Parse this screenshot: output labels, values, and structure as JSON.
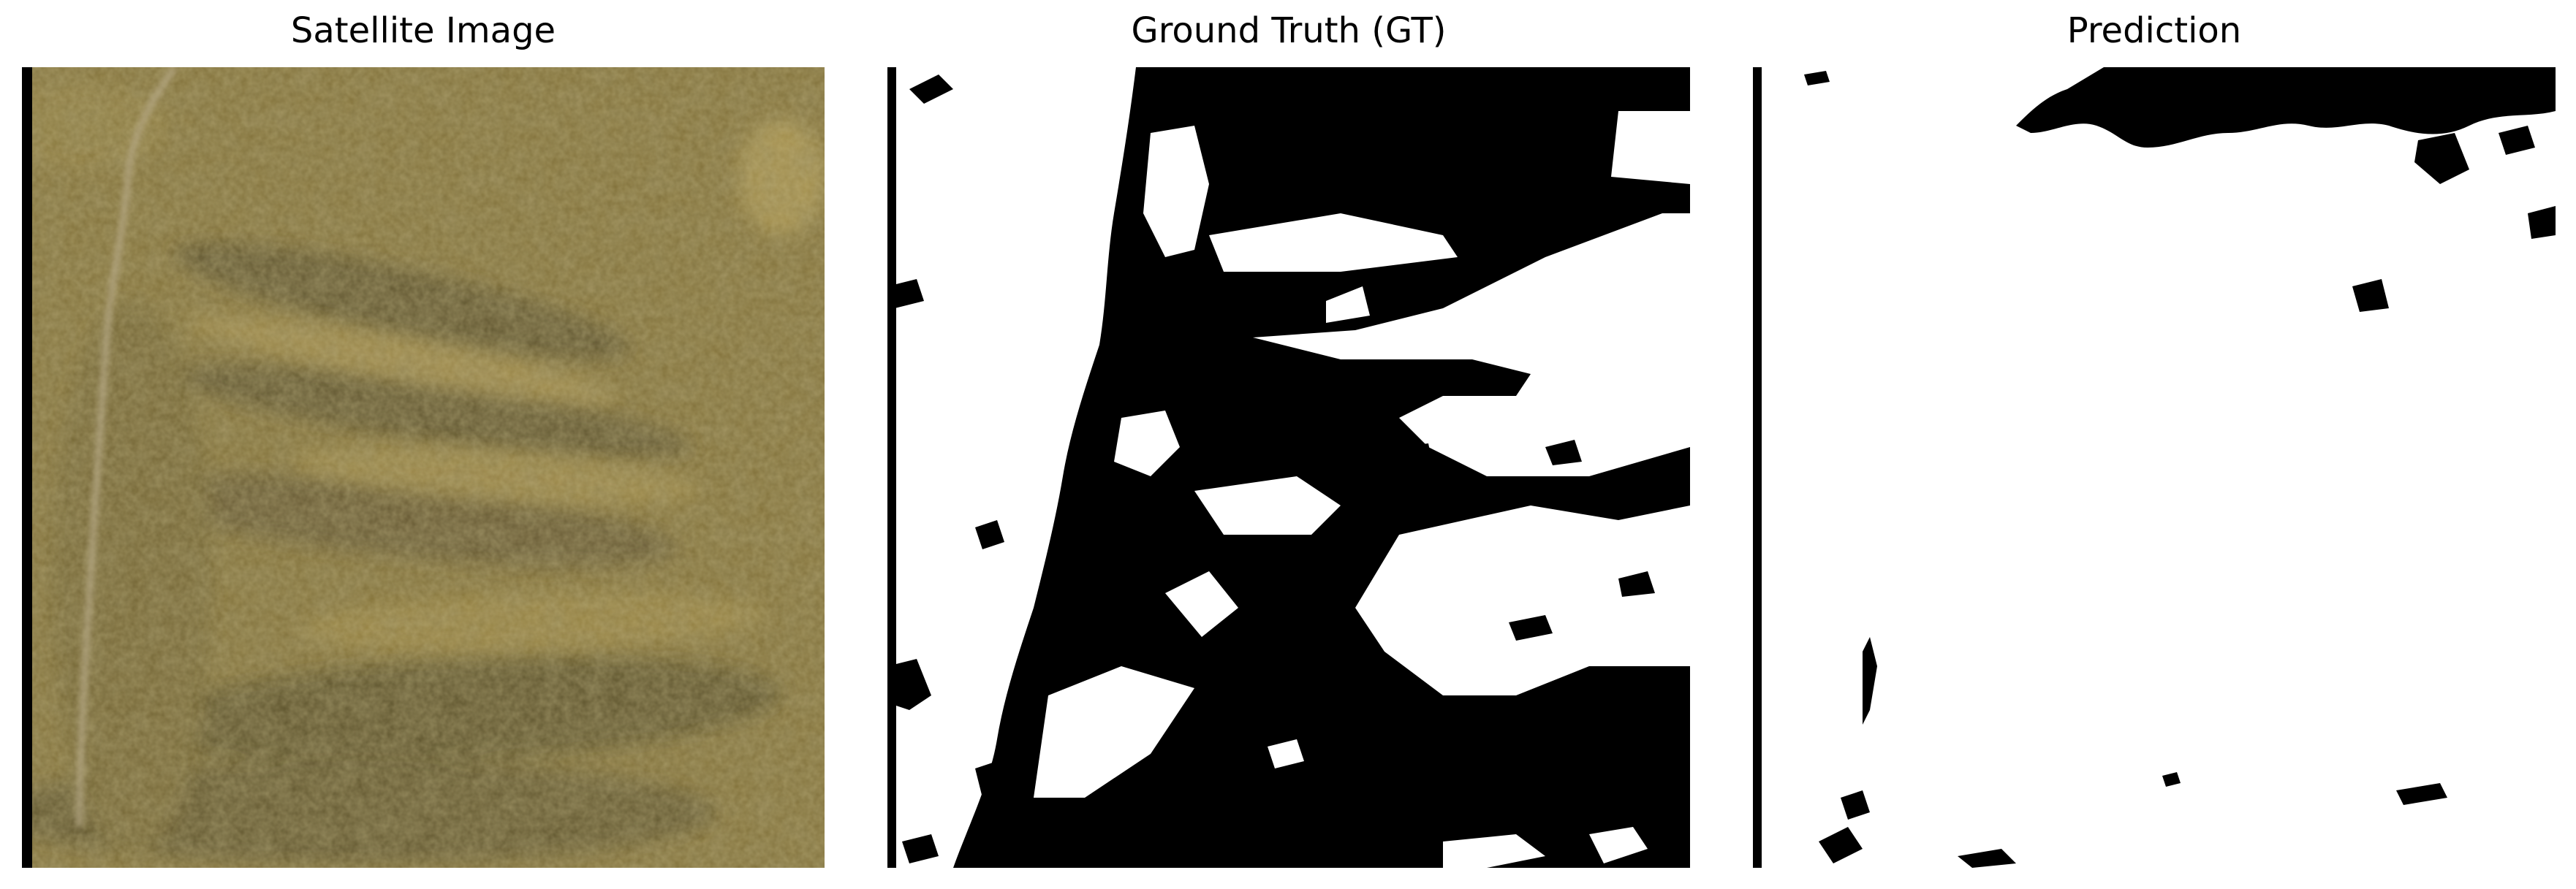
{
  "figure": {
    "panels": [
      {
        "title": "Satellite Image"
      },
      {
        "title": "Ground Truth (GT)"
      },
      {
        "title": "Prediction"
      }
    ]
  },
  "colors": {
    "background": "#ffffff",
    "mask_foreground": "#ffffff",
    "mask_background": "#000000",
    "satellite_base": "#7f6e36",
    "satellite_dark": "#4e4526",
    "satellite_light": "#a8924f",
    "trail": "#b7aa88"
  }
}
